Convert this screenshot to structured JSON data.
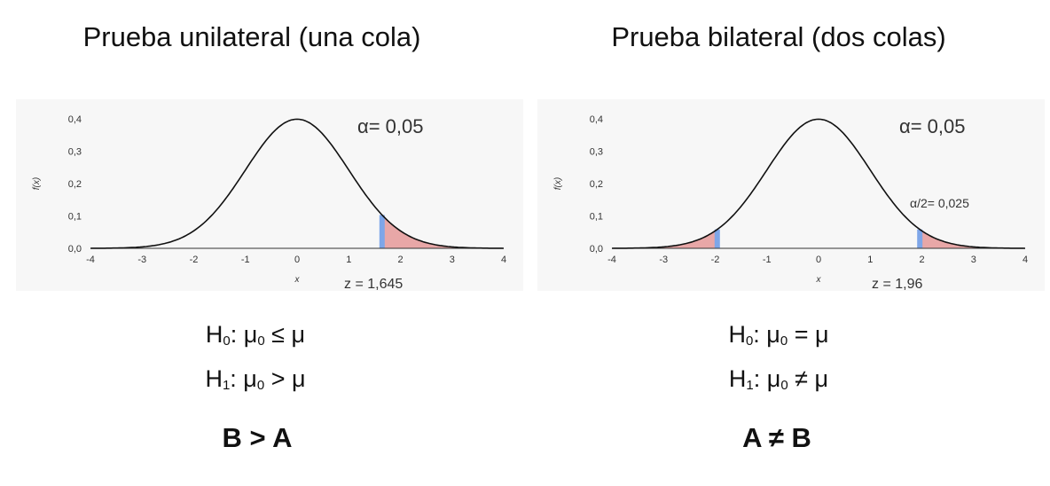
{
  "panels": [
    {
      "title": "Prueba unilateral (una cola)",
      "hypotheses": {
        "h0": {
          "name": "H",
          "sub": "0",
          "rel_a": ": μ",
          "rel_sub": "0",
          "rel_b": " ≤ μ"
        },
        "h1": {
          "name": "H",
          "sub": "1",
          "rel_a": ": μ",
          "rel_sub": "0",
          "rel_b": " > μ"
        }
      },
      "conclusion": "B > A"
    },
    {
      "title": "Prueba bilateral (dos colas)",
      "hypotheses": {
        "h0": {
          "name": "H",
          "sub": "0",
          "rel_a": ": μ",
          "rel_sub": "0",
          "rel_b": " = μ"
        },
        "h1": {
          "name": "H",
          "sub": "1",
          "rel_a": ": μ",
          "rel_sub": "0",
          "rel_b": " ≠ μ"
        }
      },
      "conclusion": "A ≠ B"
    }
  ],
  "chart_data": [
    {
      "type": "area",
      "curve": "standard normal density",
      "xlim": [
        -4,
        4
      ],
      "ylim": [
        0,
        0.4
      ],
      "xticks": [
        "-4",
        "-3",
        "-2",
        "-1",
        "0",
        "1",
        "2",
        "3",
        "4"
      ],
      "yticks": [
        "0,0",
        "0,1",
        "0,2",
        "0,3",
        "0,4"
      ],
      "xlabel": "x",
      "ylabel": "f(x)",
      "alpha_label": "α= 0,05",
      "z_label": "z = 1,645",
      "critical_values": [
        1.645
      ],
      "shaded_regions": [
        [
          1.645,
          4
        ]
      ],
      "colors": {
        "curve": "#111111",
        "tail": "#e8a7a7",
        "critical_line": "#7ea6e8",
        "background": "#f7f7f7"
      }
    },
    {
      "type": "area",
      "curve": "standard normal density",
      "xlim": [
        -4,
        4
      ],
      "ylim": [
        0,
        0.4
      ],
      "xticks": [
        "-4",
        "-3",
        "-2",
        "-1",
        "0",
        "1",
        "2",
        "3",
        "4"
      ],
      "yticks": [
        "0,0",
        "0,1",
        "0,2",
        "0,3",
        "0,4"
      ],
      "xlabel": "x",
      "ylabel": "f(x)",
      "alpha_label": "α= 0,05",
      "half_alpha_label": "α/2= 0,025",
      "z_label": "z = 1,96",
      "critical_values": [
        -1.96,
        1.96
      ],
      "shaded_regions": [
        [
          -4,
          -1.96
        ],
        [
          1.96,
          4
        ]
      ],
      "colors": {
        "curve": "#111111",
        "tail": "#e8a7a7",
        "critical_line": "#7ea6e8",
        "background": "#f7f7f7"
      }
    }
  ]
}
